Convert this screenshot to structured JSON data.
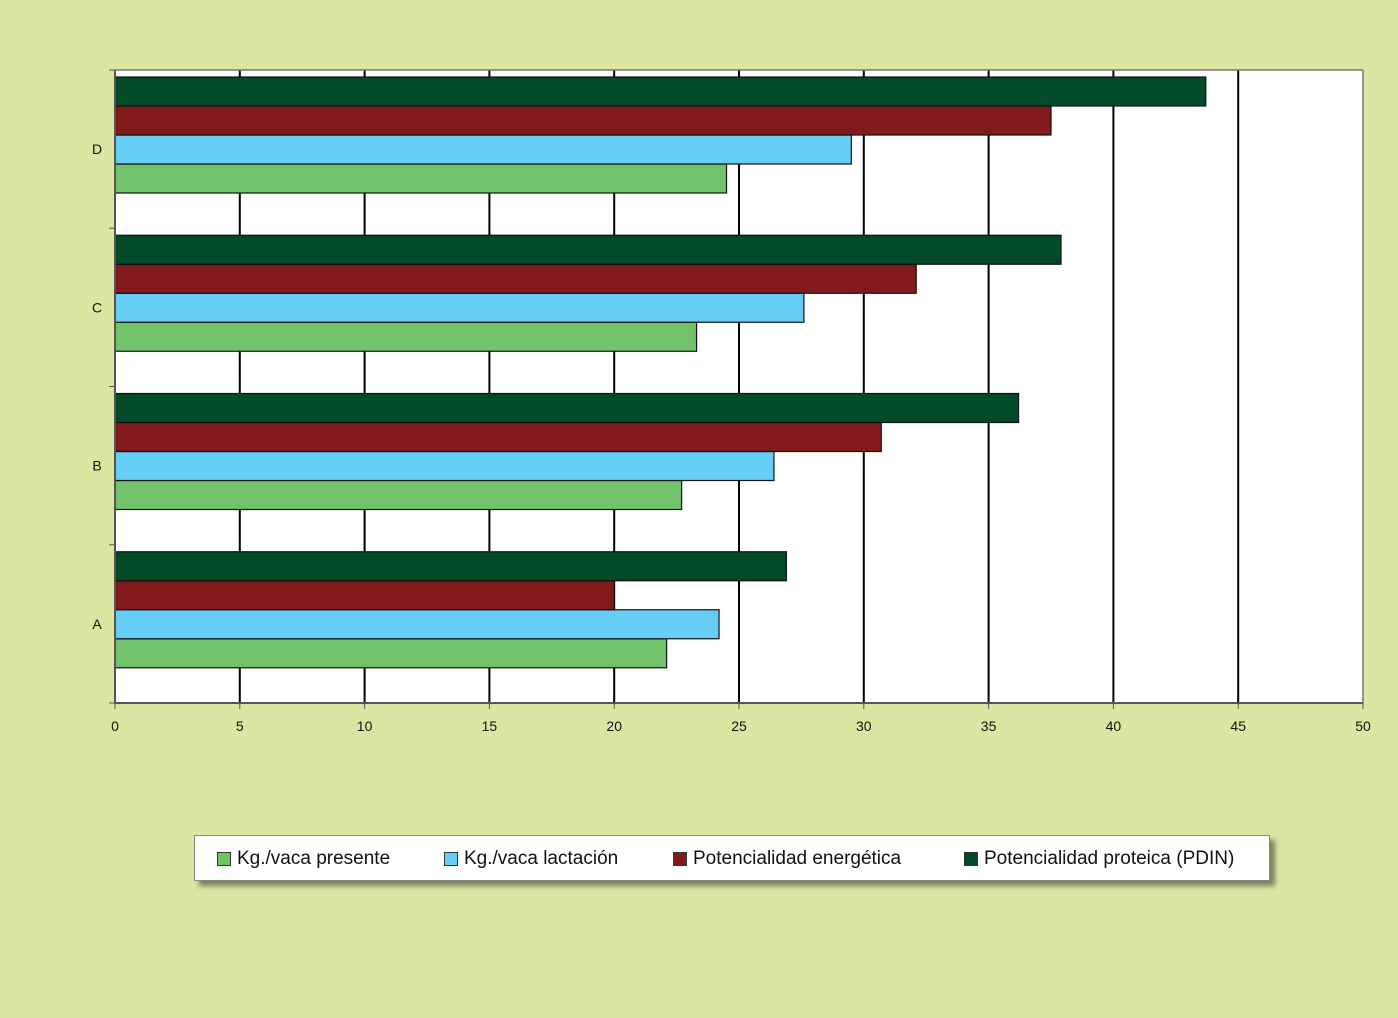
{
  "chart_data": {
    "type": "bar",
    "orientation": "horizontal",
    "categories": [
      "A",
      "B",
      "C",
      "D"
    ],
    "series": [
      {
        "name": "Kg./vaca presente",
        "color": "#72c26c",
        "values": [
          22.1,
          22.7,
          23.3,
          24.5
        ]
      },
      {
        "name": "Kg./vaca lactación",
        "color": "#66cdf4",
        "values": [
          24.2,
          26.4,
          27.6,
          29.5
        ]
      },
      {
        "name": "Potencialidad energética",
        "color": "#821a1c",
        "values": [
          20.0,
          30.7,
          32.1,
          37.5
        ]
      },
      {
        "name": "Potencialidad proteica (PDIN)",
        "color": "#034a28",
        "values": [
          26.9,
          36.2,
          37.9,
          43.7
        ]
      }
    ],
    "xlim": [
      0,
      50
    ],
    "x_ticks": [
      "0",
      "5",
      "10",
      "15",
      "20",
      "25",
      "30",
      "35",
      "40",
      "45",
      "50"
    ],
    "grid": true,
    "legend_position": "bottom"
  }
}
